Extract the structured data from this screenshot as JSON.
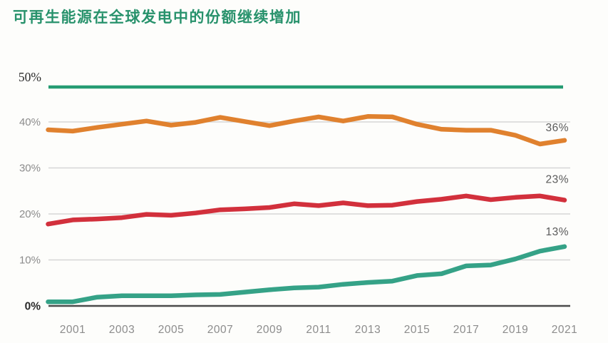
{
  "title": "可再生能源在全球发电中的份额继续增加",
  "colors": {
    "title": "#28926c",
    "reference_green": "#259c72",
    "grid": "#d6d6d6",
    "axis": "#4b4b4b",
    "tick_label": "#8c8c8c",
    "dark_label": "#2b2b2b",
    "end_label": "#5a5a5a",
    "orange": "#e0812e",
    "red": "#d2303c",
    "teal": "#35a287"
  },
  "chart_data": {
    "type": "line",
    "title": "可再生能源在全球发电中的份额继续增加",
    "xlabel": "",
    "ylabel": "",
    "unit": "%",
    "ylim": [
      0,
      50
    ],
    "grid": "horizontal",
    "legend_position": "none",
    "x": [
      2000,
      2001,
      2002,
      2003,
      2004,
      2005,
      2006,
      2007,
      2008,
      2009,
      2010,
      2011,
      2012,
      2013,
      2014,
      2015,
      2016,
      2017,
      2018,
      2019,
      2020,
      2021
    ],
    "x_tick_labels": [
      "2001",
      "2003",
      "2005",
      "2007",
      "2009",
      "2011",
      "2013",
      "2015",
      "2017",
      "2019",
      "2021"
    ],
    "y_ticks": [
      {
        "value": 0,
        "label": "0%"
      },
      {
        "value": 10,
        "label": "10%"
      },
      {
        "value": 20,
        "label": "20%"
      },
      {
        "value": 30,
        "label": "30%"
      },
      {
        "value": 40,
        "label": "40%"
      },
      {
        "value": 50,
        "label": "50%"
      }
    ],
    "reference_line": {
      "value": 50,
      "label": "50%",
      "color": "#259c72"
    },
    "series": [
      {
        "name": "orange-line",
        "color": "#e0812e",
        "end_label": "36%",
        "values": [
          38.3,
          38.0,
          38.8,
          39.5,
          40.2,
          39.3,
          39.9,
          41.0,
          40.1,
          39.2,
          40.2,
          41.1,
          40.2,
          41.2,
          41.1,
          39.5,
          38.4,
          38.2,
          38.2,
          37.1,
          35.2,
          36.0
        ]
      },
      {
        "name": "red-line",
        "color": "#d2303c",
        "end_label": "23%",
        "values": [
          17.8,
          18.7,
          18.9,
          19.2,
          19.9,
          19.7,
          20.2,
          20.9,
          21.1,
          21.4,
          22.2,
          21.8,
          22.4,
          21.8,
          21.9,
          22.7,
          23.2,
          23.9,
          23.1,
          23.6,
          23.9,
          23.0
        ]
      },
      {
        "name": "teal-line",
        "color": "#35a287",
        "end_label": "13%",
        "values": [
          0.9,
          0.9,
          1.9,
          2.2,
          2.2,
          2.2,
          2.4,
          2.5,
          3.0,
          3.5,
          3.9,
          4.1,
          4.7,
          5.1,
          5.4,
          6.6,
          7.0,
          8.7,
          8.9,
          10.2,
          11.9,
          12.9
        ]
      }
    ]
  }
}
